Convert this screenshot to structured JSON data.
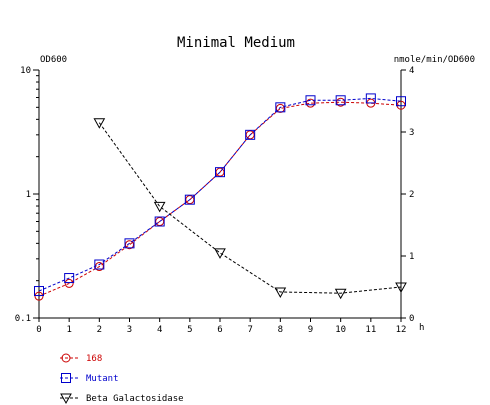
{
  "chart_data": {
    "type": "line",
    "title": "Minimal Medium",
    "xlabel": "h",
    "ylabel_left": "OD600",
    "ylabel_right": "nmole/min/OD600",
    "xlim": [
      0,
      12
    ],
    "x_ticks": [
      "0",
      "1",
      "2",
      "3",
      "4",
      "5",
      "6",
      "7",
      "8",
      "9",
      "10",
      "11",
      "12"
    ],
    "y_left_scale": "log",
    "y_left_lim": [
      0.1,
      10
    ],
    "y_left_ticks": [
      "0.1",
      "1",
      "10"
    ],
    "y_right_lim": [
      0,
      4
    ],
    "y_right_ticks": [
      "0",
      "1",
      "2",
      "3",
      "4"
    ],
    "grid": false,
    "legend_position": "bottom-left",
    "series": [
      {
        "name": "168",
        "axis": "left",
        "color": "#cc0000",
        "marker": "circle",
        "x": [
          0,
          1,
          2,
          3,
          4,
          5,
          6,
          7,
          8,
          9,
          10,
          11,
          12
        ],
        "y": [
          0.15,
          0.19,
          0.26,
          0.39,
          0.6,
          0.9,
          1.5,
          3.0,
          4.9,
          5.4,
          5.5,
          5.4,
          5.2
        ]
      },
      {
        "name": "Mutant",
        "axis": "left",
        "color": "#0000cc",
        "marker": "square",
        "x": [
          0,
          1,
          2,
          3,
          4,
          5,
          6,
          7,
          8,
          9,
          10,
          11,
          12
        ],
        "y": [
          0.165,
          0.21,
          0.27,
          0.4,
          0.6,
          0.9,
          1.5,
          3.0,
          5.0,
          5.7,
          5.7,
          5.9,
          5.6
        ]
      },
      {
        "name": "Beta Galactosidase",
        "axis": "right",
        "color": "#000000",
        "marker": "triangle-down",
        "x": [
          2,
          4,
          6,
          8,
          10,
          12
        ],
        "y": [
          3.15,
          1.8,
          1.05,
          0.42,
          0.4,
          0.5
        ]
      }
    ]
  }
}
